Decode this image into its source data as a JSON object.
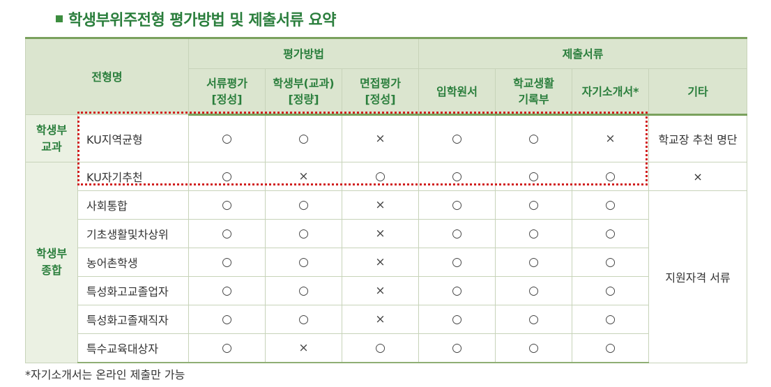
{
  "title": "학생부위주전형 평가방법 및 제출서류 요약",
  "header": {
    "type_label": "전형명",
    "eval_group": "평가방법",
    "docs_group": "제출서류",
    "columns": [
      {
        "line1": "서류평가",
        "line2": "[정성]"
      },
      {
        "line1": "학생부(교과)",
        "line2": "[정량]"
      },
      {
        "line1": "면접평가",
        "line2": "[정성]"
      },
      {
        "line1": "입학원서",
        "line2": ""
      },
      {
        "line1": "학교생활",
        "line2": "기록부"
      },
      {
        "line1": "자기소개서*",
        "line2": ""
      },
      {
        "line1": "기타",
        "line2": ""
      }
    ]
  },
  "groups": [
    {
      "line1": "학생부",
      "line2": "교과"
    },
    {
      "line1": "학생부",
      "line2": "종합"
    }
  ],
  "rows": [
    {
      "name": "KU지역균형",
      "marks": [
        "○",
        "○",
        "×",
        "○",
        "○",
        "×"
      ],
      "etc": "학교장 추천 명단"
    },
    {
      "name": "KU자기추천",
      "marks": [
        "○",
        "×",
        "○",
        "○",
        "○",
        "○"
      ],
      "etc": "×"
    },
    {
      "name": "사회통합",
      "marks": [
        "○",
        "○",
        "×",
        "○",
        "○",
        "○"
      ]
    },
    {
      "name": "기초생활및차상위",
      "marks": [
        "○",
        "○",
        "×",
        "○",
        "○",
        "○"
      ]
    },
    {
      "name": "농어촌학생",
      "marks": [
        "○",
        "○",
        "×",
        "○",
        "○",
        "○"
      ]
    },
    {
      "name": "특성화고교졸업자",
      "marks": [
        "○",
        "○",
        "×",
        "○",
        "○",
        "○"
      ]
    },
    {
      "name": "특성화고졸재직자",
      "marks": [
        "○",
        "○",
        "×",
        "○",
        "○",
        "○"
      ]
    },
    {
      "name": "특수교육대상자",
      "marks": [
        "○",
        "×",
        "○",
        "○",
        "○",
        "○"
      ]
    }
  ],
  "shared_etc": "지원자격 서류",
  "footnote": "*자기소개서는 온라인 제출만 가능",
  "colors": {
    "accent_green": "#2a7e3c",
    "header_bg": "#dbe5cf",
    "group_bg": "#ebf1e3",
    "highlight": "#d11f1f"
  }
}
